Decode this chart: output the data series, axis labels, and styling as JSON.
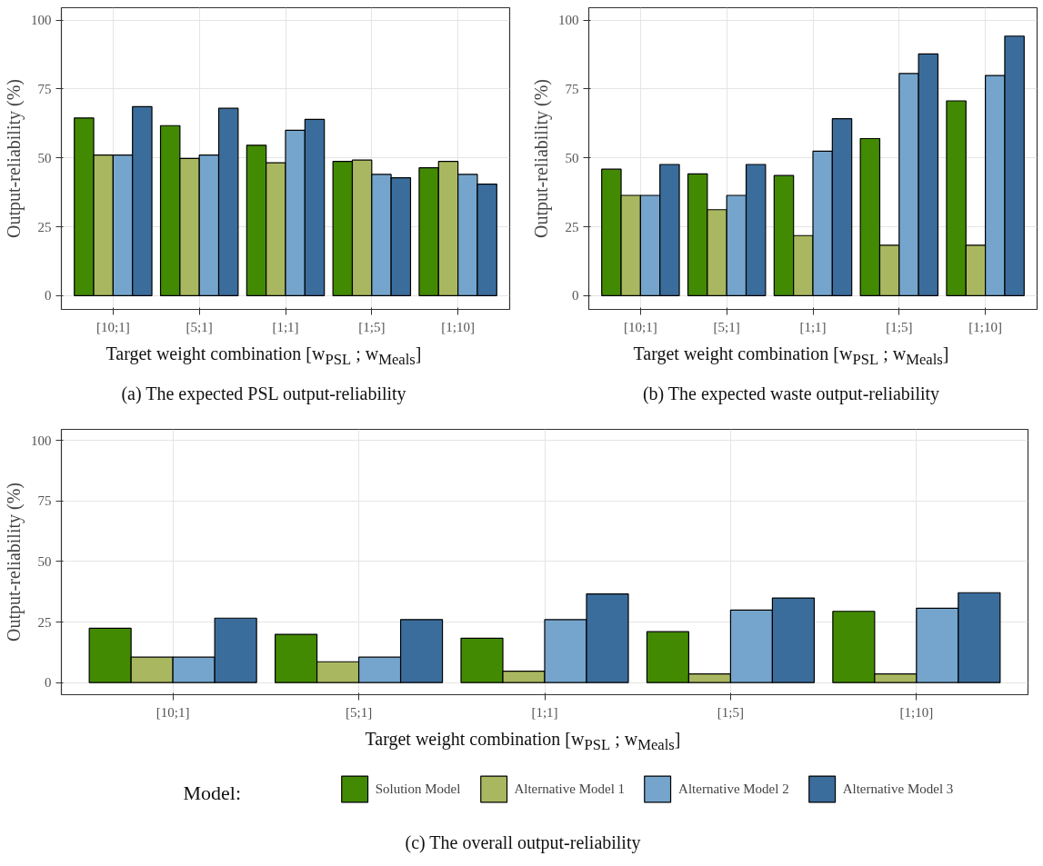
{
  "chart_data": [
    {
      "type": "bar",
      "title": "(a) The expected PSL output-reliability",
      "xlabel": "Target weight combination [w$_{PSL}$ ; w$_{Meals}$]",
      "ylabel": "Output-reliability (%)",
      "categories": [
        "[10;1]",
        "[5;1]",
        "[1;1]",
        "[1;5]",
        "[1;10]"
      ],
      "ylim": [
        -5,
        104.5
      ],
      "yticks": [
        0,
        25,
        50,
        75,
        100
      ],
      "grid": true,
      "series": [
        {
          "color": "#438a03",
          "values": [
            64.5,
            61.7,
            54.6,
            48.7,
            46.4
          ]
        },
        {
          "color": "#a9b860",
          "values": [
            51,
            49.8,
            48.2,
            49.2,
            48.7
          ]
        },
        {
          "color": "#75a5cc",
          "values": [
            51,
            51,
            60,
            44,
            44
          ]
        },
        {
          "color": "#3b6d9c",
          "values": [
            68.6,
            68,
            64,
            42.8,
            40.5
          ]
        }
      ]
    },
    {
      "type": "bar",
      "title": "(b) The expected waste output-reliability",
      "xlabel": "Target weight combination [w$_{PSL}$ ; w$_{Meals}$]",
      "ylabel": "Output-reliability (%)",
      "categories": [
        "[10;1]",
        "[5;1]",
        "[1;1]",
        "[1;5]",
        "[1;10]"
      ],
      "ylim": [
        -5,
        104.5
      ],
      "yticks": [
        0,
        25,
        50,
        75,
        100
      ],
      "grid": true,
      "series": [
        {
          "color": "#438a03",
          "values": [
            45.9,
            44.2,
            43.6,
            57,
            70.7
          ]
        },
        {
          "color": "#a9b860",
          "values": [
            36.4,
            31.2,
            21.8,
            18.3,
            18.3
          ]
        },
        {
          "color": "#75a5cc",
          "values": [
            36.4,
            36.4,
            52.4,
            80.6,
            79.9
          ]
        },
        {
          "color": "#3b6d9c",
          "values": [
            47.6,
            47.6,
            64.2,
            87.7,
            94.2
          ]
        }
      ]
    },
    {
      "type": "bar",
      "title": "(c) The overall output-reliability",
      "xlabel": "Target weight combination [w$_{PSL}$ ; w$_{Meals}$]",
      "ylabel": "Output-reliability (%)",
      "categories": [
        "[10;1]",
        "[5;1]",
        "[1;1]",
        "[1;5]",
        "[1;10]"
      ],
      "ylim": [
        -5,
        104.5
      ],
      "yticks": [
        0,
        25,
        50,
        75,
        100
      ],
      "grid": true,
      "legend": "bottom",
      "legend_title": "Model:",
      "series": [
        {
          "name": "Solution Model",
          "color": "#438a03",
          "values": [
            22.4,
            19.9,
            18.3,
            21,
            29.4
          ]
        },
        {
          "name": "Alternative Model 1",
          "color": "#a9b860",
          "values": [
            10.5,
            8.6,
            4.7,
            3.6,
            3.6
          ]
        },
        {
          "name": "Alternative Model 2",
          "color": "#75a5cc",
          "values": [
            10.5,
            10.5,
            26,
            29.9,
            30.7
          ]
        },
        {
          "name": "Alternative Model 3",
          "color": "#3b6d9c",
          "values": [
            26.6,
            26,
            36.6,
            34.9,
            37.1
          ]
        }
      ]
    }
  ]
}
